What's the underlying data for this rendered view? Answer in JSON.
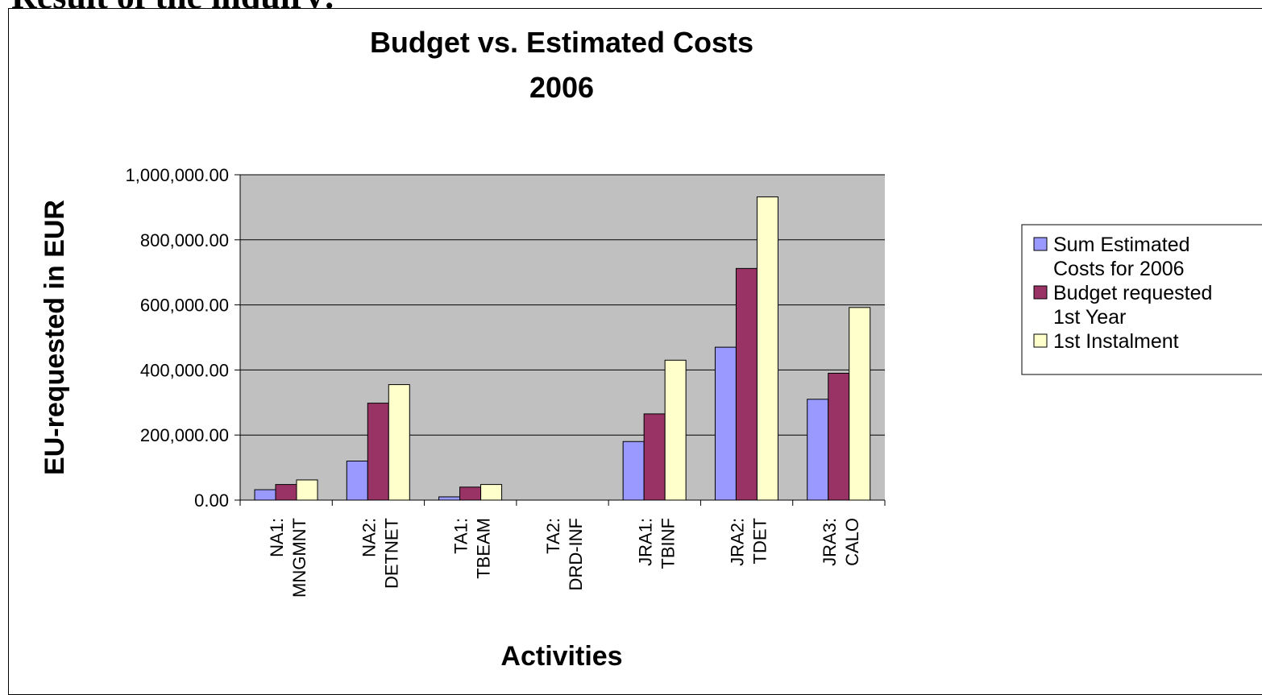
{
  "page": {
    "heading": "Result of the inquiry:"
  },
  "chart_data": {
    "type": "bar",
    "title": "Budget vs. Estimated Costs",
    "subtitle": "2006",
    "xlabel": "Activities",
    "ylabel": "EU-requested in EUR",
    "ylim": [
      0,
      1000000
    ],
    "yticks": [
      0,
      200000,
      400000,
      600000,
      800000,
      1000000
    ],
    "ytick_labels": [
      "0.00",
      "200,000.00",
      "400,000.00",
      "600,000.00",
      "800,000.00",
      "1,000,000.00"
    ],
    "grid": true,
    "plot_background": "#c0c0c0",
    "categories": [
      [
        "NA1:",
        "MNGMNT"
      ],
      [
        "NA2:",
        "DETNET"
      ],
      [
        "TA1:",
        "TBEAM"
      ],
      [
        "TA2:",
        "DRD-INF"
      ],
      [
        "JRA1:",
        "TBINF"
      ],
      [
        "JRA2:",
        "TDET"
      ],
      [
        "JRA3:",
        "CALO"
      ]
    ],
    "series": [
      {
        "name": "Sum Estimated Costs for 2006",
        "legend_lines": [
          "Sum Estimated",
          "Costs for 2006"
        ],
        "color": "#9999ff",
        "values": [
          32000,
          120000,
          10000,
          0,
          180000,
          470000,
          310000
        ]
      },
      {
        "name": "Budget requested 1st Year",
        "legend_lines": [
          "Budget requested",
          "1st Year"
        ],
        "color": "#993366",
        "values": [
          48000,
          298000,
          40000,
          0,
          265000,
          712000,
          390000
        ]
      },
      {
        "name": "1st Instalment",
        "legend_lines": [
          "1st Instalment"
        ],
        "color": "#ffffcc",
        "values": [
          62000,
          355000,
          48000,
          0,
          430000,
          932000,
          592000
        ]
      }
    ],
    "legend_position": "right"
  }
}
